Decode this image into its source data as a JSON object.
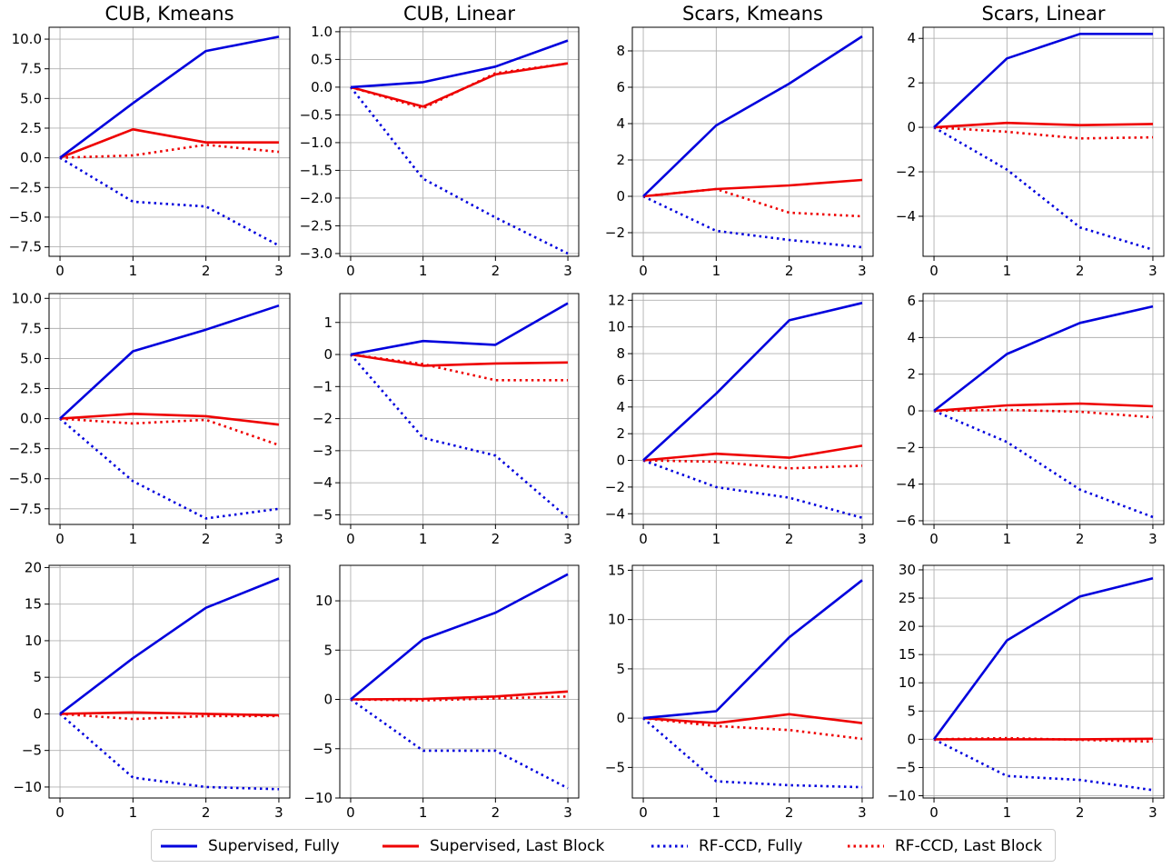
{
  "chart_data": [
    {
      "type": "line",
      "title": "CUB, Kmeans",
      "x": [
        0,
        1,
        2,
        3
      ],
      "ylim": [
        -8.3,
        11.0
      ],
      "yticks": [
        10.0,
        7.5,
        5.0,
        2.5,
        0.0,
        -2.5,
        -5.0,
        -7.5
      ],
      "ytick_labels": [
        "10.0",
        "7.5",
        "5.0",
        "2.5",
        "0.0",
        "−2.5",
        "−5.0",
        "−7.5"
      ],
      "series": [
        {
          "name": "Supervised, Fully",
          "values": [
            0,
            4.6,
            9.0,
            10.2
          ]
        },
        {
          "name": "Supervised, Last Block",
          "values": [
            0,
            2.4,
            1.3,
            1.3
          ]
        },
        {
          "name": "RF-CCD, Fully",
          "values": [
            0,
            -3.7,
            -4.1,
            -7.4
          ]
        },
        {
          "name": "RF-CCD, Last Block",
          "values": [
            0,
            0.2,
            1.1,
            0.5
          ]
        }
      ]
    },
    {
      "type": "line",
      "title": "CUB, Linear",
      "x": [
        0,
        1,
        2,
        3
      ],
      "ylim": [
        -3.05,
        1.08
      ],
      "yticks": [
        1.0,
        0.5,
        0.0,
        -0.5,
        -1.0,
        -1.5,
        -2.0,
        -2.5,
        -3.0
      ],
      "ytick_labels": [
        "1.0",
        "0.5",
        "0.0",
        "−0.5",
        "−1.0",
        "−1.5",
        "−2.0",
        "−2.5",
        "−3.0"
      ],
      "series": [
        {
          "name": "Supervised, Fully",
          "values": [
            0,
            0.09,
            0.37,
            0.84
          ]
        },
        {
          "name": "Supervised, Last Block",
          "values": [
            0,
            -0.35,
            0.23,
            0.43
          ]
        },
        {
          "name": "RF-CCD, Fully",
          "values": [
            0,
            -1.65,
            -2.35,
            -3.0
          ]
        },
        {
          "name": "RF-CCD, Last Block",
          "values": [
            0,
            -0.38,
            0.25,
            0.43
          ]
        }
      ]
    },
    {
      "type": "line",
      "title": "Scars, Kmeans",
      "x": [
        0,
        1,
        2,
        3
      ],
      "ylim": [
        -3.3,
        9.3
      ],
      "yticks": [
        8,
        6,
        4,
        2,
        0,
        -2
      ],
      "ytick_labels": [
        "8",
        "6",
        "4",
        "2",
        "0",
        "−2"
      ],
      "series": [
        {
          "name": "Supervised, Fully",
          "values": [
            0,
            3.9,
            6.2,
            8.8
          ]
        },
        {
          "name": "Supervised, Last Block",
          "values": [
            0,
            0.4,
            0.6,
            0.9
          ]
        },
        {
          "name": "RF-CCD, Fully",
          "values": [
            0,
            -1.9,
            -2.4,
            -2.8
          ]
        },
        {
          "name": "RF-CCD, Last Block",
          "values": [
            0,
            0.4,
            -0.9,
            -1.1
          ]
        }
      ]
    },
    {
      "type": "line",
      "title": "Scars, Linear",
      "x": [
        0,
        1,
        2,
        3
      ],
      "ylim": [
        -5.8,
        4.5
      ],
      "yticks": [
        4,
        2,
        0,
        -2,
        -4
      ],
      "ytick_labels": [
        "4",
        "2",
        "0",
        "−2",
        "−4"
      ],
      "series": [
        {
          "name": "Supervised, Fully",
          "values": [
            0,
            3.1,
            4.2,
            4.2
          ]
        },
        {
          "name": "Supervised, Last Block",
          "values": [
            0,
            0.2,
            0.1,
            0.15
          ]
        },
        {
          "name": "RF-CCD, Fully",
          "values": [
            0,
            -1.9,
            -4.5,
            -5.5
          ]
        },
        {
          "name": "RF-CCD, Last Block",
          "values": [
            0,
            -0.2,
            -0.5,
            -0.45
          ]
        }
      ]
    },
    {
      "type": "line",
      "title": "",
      "x": [
        0,
        1,
        2,
        3
      ],
      "ylim": [
        -8.8,
        10.4
      ],
      "yticks": [
        10.0,
        7.5,
        5.0,
        2.5,
        0.0,
        -2.5,
        -5.0,
        -7.5
      ],
      "ytick_labels": [
        "10.0",
        "7.5",
        "5.0",
        "2.5",
        "0.0",
        "−2.5",
        "−5.0",
        "−7.5"
      ],
      "series": [
        {
          "name": "Supervised, Fully",
          "values": [
            0,
            5.6,
            7.4,
            9.4
          ]
        },
        {
          "name": "Supervised, Last Block",
          "values": [
            0,
            0.4,
            0.2,
            -0.5
          ]
        },
        {
          "name": "RF-CCD, Fully",
          "values": [
            0,
            -5.2,
            -8.3,
            -7.5
          ]
        },
        {
          "name": "RF-CCD, Last Block",
          "values": [
            0,
            -0.4,
            -0.1,
            -2.2
          ]
        }
      ]
    },
    {
      "type": "line",
      "title": "",
      "x": [
        0,
        1,
        2,
        3
      ],
      "ylim": [
        -5.3,
        1.9
      ],
      "yticks": [
        1,
        0,
        -1,
        -2,
        -3,
        -4,
        -5
      ],
      "ytick_labels": [
        "1",
        "0",
        "−1",
        "−2",
        "−3",
        "−4",
        "−5"
      ],
      "series": [
        {
          "name": "Supervised, Fully",
          "values": [
            0,
            0.42,
            0.3,
            1.6
          ]
        },
        {
          "name": "Supervised, Last Block",
          "values": [
            0,
            -0.35,
            -0.28,
            -0.25
          ]
        },
        {
          "name": "RF-CCD, Fully",
          "values": [
            0,
            -2.6,
            -3.15,
            -5.1
          ]
        },
        {
          "name": "RF-CCD, Last Block",
          "values": [
            0,
            -0.3,
            -0.8,
            -0.8
          ]
        }
      ]
    },
    {
      "type": "line",
      "title": "",
      "x": [
        0,
        1,
        2,
        3
      ],
      "ylim": [
        -4.8,
        12.5
      ],
      "yticks": [
        12,
        10,
        8,
        6,
        4,
        2,
        0,
        -2,
        -4
      ],
      "ytick_labels": [
        "12",
        "10",
        "8",
        "6",
        "4",
        "2",
        "0",
        "−2",
        "−4"
      ],
      "series": [
        {
          "name": "Supervised, Fully",
          "values": [
            0,
            5.0,
            10.5,
            11.8
          ]
        },
        {
          "name": "Supervised, Last Block",
          "values": [
            0,
            0.5,
            0.2,
            1.1
          ]
        },
        {
          "name": "RF-CCD, Fully",
          "values": [
            0,
            -2.0,
            -2.8,
            -4.3
          ]
        },
        {
          "name": "RF-CCD, Last Block",
          "values": [
            0,
            -0.1,
            -0.6,
            -0.4
          ]
        }
      ]
    },
    {
      "type": "line",
      "title": "",
      "x": [
        0,
        1,
        2,
        3
      ],
      "ylim": [
        -6.2,
        6.4
      ],
      "yticks": [
        6,
        4,
        2,
        0,
        -2,
        -4,
        -6
      ],
      "ytick_labels": [
        "6",
        "4",
        "2",
        "0",
        "−2",
        "−4",
        "−6"
      ],
      "series": [
        {
          "name": "Supervised, Fully",
          "values": [
            0,
            3.1,
            4.8,
            5.7
          ]
        },
        {
          "name": "Supervised, Last Block",
          "values": [
            0,
            0.3,
            0.4,
            0.25
          ]
        },
        {
          "name": "RF-CCD, Fully",
          "values": [
            0,
            -1.7,
            -4.3,
            -5.8
          ]
        },
        {
          "name": "RF-CCD, Last Block",
          "values": [
            0,
            0.05,
            -0.05,
            -0.35
          ]
        }
      ]
    },
    {
      "type": "line",
      "title": "",
      "x": [
        0,
        1,
        2,
        3
      ],
      "ylim": [
        -11.5,
        20.3
      ],
      "yticks": [
        20,
        15,
        10,
        5,
        0,
        -5,
        -10
      ],
      "ytick_labels": [
        "20",
        "15",
        "10",
        "5",
        "0",
        "−5",
        "−10"
      ],
      "series": [
        {
          "name": "Supervised, Fully",
          "values": [
            0,
            7.6,
            14.5,
            18.5
          ]
        },
        {
          "name": "Supervised, Last Block",
          "values": [
            0,
            0.2,
            0.0,
            -0.2
          ]
        },
        {
          "name": "RF-CCD, Fully",
          "values": [
            0,
            -8.7,
            -10.0,
            -10.3
          ]
        },
        {
          "name": "RF-CCD, Last Block",
          "values": [
            0,
            -0.7,
            -0.3,
            -0.3
          ]
        }
      ]
    },
    {
      "type": "line",
      "title": "",
      "x": [
        0,
        1,
        2,
        3
      ],
      "ylim": [
        -10.0,
        13.6
      ],
      "yticks": [
        10,
        5,
        0,
        -5,
        -10
      ],
      "ytick_labels": [
        "10",
        "5",
        "0",
        "−5",
        "−10"
      ],
      "series": [
        {
          "name": "Supervised, Fully",
          "values": [
            0,
            6.1,
            8.8,
            12.7
          ]
        },
        {
          "name": "Supervised, Last Block",
          "values": [
            0,
            0.05,
            0.3,
            0.8
          ]
        },
        {
          "name": "RF-CCD, Fully",
          "values": [
            0,
            -5.2,
            -5.2,
            -9.0
          ]
        },
        {
          "name": "RF-CCD, Last Block",
          "values": [
            0,
            -0.1,
            0.1,
            0.3
          ]
        }
      ]
    },
    {
      "type": "line",
      "title": "",
      "x": [
        0,
        1,
        2,
        3
      ],
      "ylim": [
        -8.1,
        15.5
      ],
      "yticks": [
        15,
        10,
        5,
        0,
        -5
      ],
      "ytick_labels": [
        "15",
        "10",
        "5",
        "0",
        "−5"
      ],
      "series": [
        {
          "name": "Supervised, Fully",
          "values": [
            0,
            0.7,
            8.2,
            14.0
          ]
        },
        {
          "name": "Supervised, Last Block",
          "values": [
            0,
            -0.5,
            0.4,
            -0.5
          ]
        },
        {
          "name": "RF-CCD, Fully",
          "values": [
            0,
            -6.4,
            -6.8,
            -7.0
          ]
        },
        {
          "name": "RF-CCD, Last Block",
          "values": [
            0,
            -0.8,
            -1.2,
            -2.1
          ]
        }
      ]
    },
    {
      "type": "line",
      "title": "",
      "x": [
        0,
        1,
        2,
        3
      ],
      "ylim": [
        -10.4,
        30.8
      ],
      "yticks": [
        30,
        25,
        20,
        15,
        10,
        5,
        0,
        -5,
        -10
      ],
      "ytick_labels": [
        "30",
        "25",
        "20",
        "15",
        "10",
        "5",
        "0",
        "−5",
        "−10"
      ],
      "series": [
        {
          "name": "Supervised, Fully",
          "values": [
            0,
            17.5,
            25.3,
            28.5
          ]
        },
        {
          "name": "Supervised, Last Block",
          "values": [
            0,
            0.0,
            0.0,
            0.1
          ]
        },
        {
          "name": "RF-CCD, Fully",
          "values": [
            0,
            -6.5,
            -7.2,
            -9.0
          ]
        },
        {
          "name": "RF-CCD, Last Block",
          "values": [
            0,
            0.2,
            -0.1,
            -0.4
          ]
        }
      ]
    }
  ],
  "style": {
    "colors": {
      "blue": "#0000dd",
      "red": "#ee0000"
    },
    "dash": {
      "solid": "",
      "dotted": "2.5,4"
    }
  },
  "legend": {
    "items": [
      {
        "label": "Supervised, Fully",
        "color": "#0000dd",
        "dash": "solid"
      },
      {
        "label": "Supervised, Last Block",
        "color": "#ee0000",
        "dash": "solid"
      },
      {
        "label": "RF-CCD, Fully",
        "color": "#0000dd",
        "dash": "dotted"
      },
      {
        "label": "RF-CCD, Last Block",
        "color": "#ee0000",
        "dash": "dotted"
      }
    ]
  }
}
